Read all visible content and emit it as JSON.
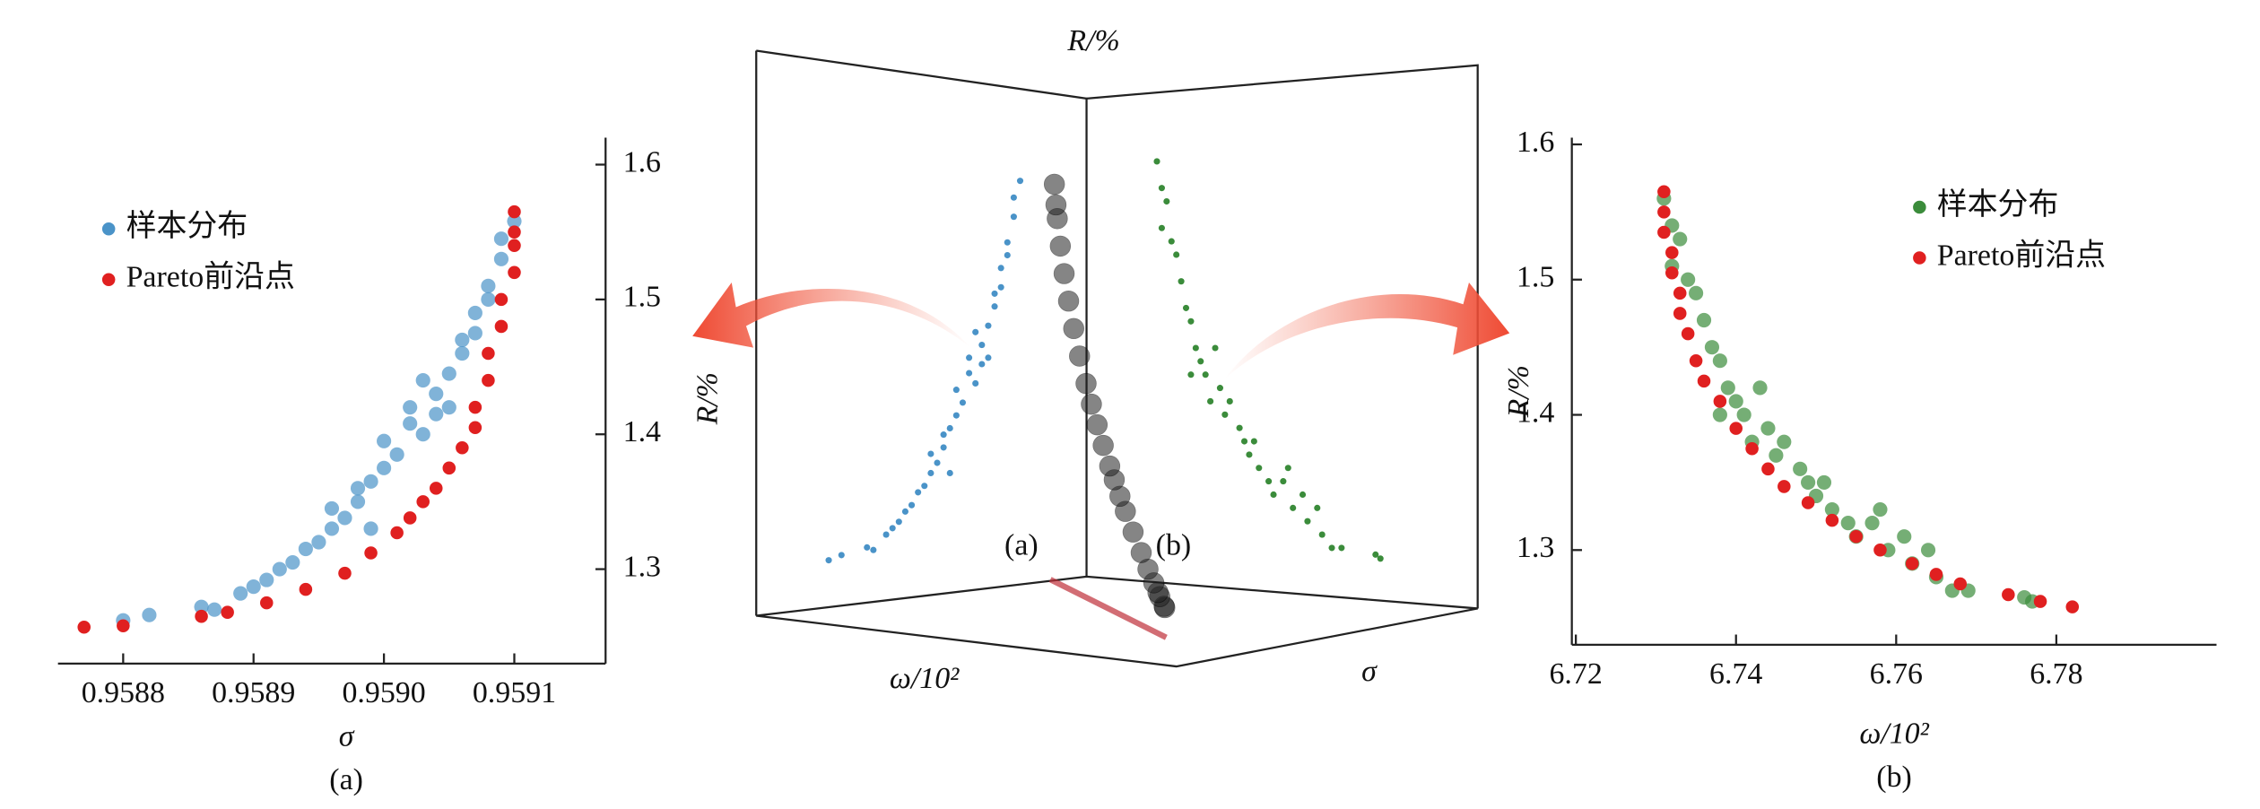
{
  "chart_data": [
    {
      "type": "scatter",
      "label": "(a)",
      "xlabel": "σ",
      "ylabel": "R/%",
      "xlim": [
        0.95875,
        0.95917
      ],
      "ylim": [
        1.23,
        1.62
      ],
      "xticks": [
        0.9588,
        0.9589,
        {
          "value": 0.959,
          "label": "0.9590"
        },
        0.9591
      ],
      "yticks": [
        1.3,
        1.4,
        1.5,
        1.6
      ],
      "series": [
        {
          "name": "样本分布",
          "color": "#4a93c8",
          "x": [
            0.9588,
            0.95882,
            0.95886,
            0.95887,
            0.95889,
            0.9589,
            0.95891,
            0.95892,
            0.95893,
            0.95894,
            0.95895,
            0.95896,
            0.95896,
            0.95897,
            0.95898,
            0.95899,
            0.959,
            0.959,
            0.95901,
            0.95902,
            0.95902,
            0.95903,
            0.95904,
            0.95904,
            0.95905,
            0.95906,
            0.95906,
            0.95907,
            0.95907,
            0.95908,
            0.95908,
            0.95909,
            0.95909,
            0.9591,
            0.95899,
            0.95898,
            0.95905,
            0.95903
          ],
          "y": [
            1.262,
            1.266,
            1.272,
            1.27,
            1.282,
            1.287,
            1.292,
            1.3,
            1.305,
            1.315,
            1.32,
            1.33,
            1.345,
            1.338,
            1.35,
            1.365,
            1.375,
            1.395,
            1.385,
            1.408,
            1.42,
            1.4,
            1.415,
            1.43,
            1.445,
            1.46,
            1.47,
            1.475,
            1.49,
            1.5,
            1.51,
            1.53,
            1.545,
            1.558,
            1.33,
            1.36,
            1.42,
            1.44
          ]
        },
        {
          "name": "Pareto前沿点",
          "color": "#e02020",
          "x": [
            0.95877,
            0.9588,
            0.95886,
            0.95888,
            0.95891,
            0.95894,
            0.95897,
            0.95899,
            0.95901,
            0.95902,
            0.95903,
            0.95904,
            0.95905,
            0.95906,
            0.95907,
            0.95907,
            0.95908,
            0.95908,
            0.95909,
            0.95909,
            0.9591,
            0.9591,
            0.9591,
            0.9591
          ],
          "y": [
            1.257,
            1.258,
            1.265,
            1.268,
            1.275,
            1.285,
            1.297,
            1.312,
            1.327,
            1.338,
            1.35,
            1.36,
            1.375,
            1.39,
            1.405,
            1.42,
            1.44,
            1.46,
            1.48,
            1.5,
            1.52,
            1.54,
            1.55,
            1.565
          ]
        }
      ]
    },
    {
      "type": "scatter",
      "label": "(b)",
      "xlabel": "ω/10²",
      "ylabel": "R/%",
      "xlim": [
        6.7195,
        6.8
      ],
      "ylim": [
        1.23,
        1.605
      ],
      "xticks": [
        6.72,
        6.74,
        6.76,
        6.78
      ],
      "yticks": [
        1.3,
        1.4,
        1.5,
        1.6
      ],
      "series": [
        {
          "name": "样本分布",
          "color": "#3b8c3b",
          "x": [
            6.731,
            6.732,
            6.732,
            6.733,
            6.734,
            6.735,
            6.736,
            6.737,
            6.738,
            6.739,
            6.74,
            6.741,
            6.743,
            6.744,
            6.745,
            6.746,
            6.748,
            6.749,
            6.75,
            6.752,
            6.754,
            6.755,
            6.757,
            6.758,
            6.759,
            6.761,
            6.762,
            6.764,
            6.765,
            6.767,
            6.769,
            6.776,
            6.777,
            6.742,
            6.738,
            6.751
          ],
          "y": [
            1.56,
            1.54,
            1.51,
            1.53,
            1.5,
            1.49,
            1.47,
            1.45,
            1.44,
            1.42,
            1.41,
            1.4,
            1.42,
            1.39,
            1.37,
            1.38,
            1.36,
            1.35,
            1.34,
            1.33,
            1.32,
            1.31,
            1.32,
            1.33,
            1.3,
            1.31,
            1.29,
            1.3,
            1.28,
            1.27,
            1.27,
            1.265,
            1.262,
            1.38,
            1.4,
            1.35
          ]
        },
        {
          "name": "Pareto前沿点",
          "color": "#e02020",
          "x": [
            6.731,
            6.731,
            6.731,
            6.732,
            6.732,
            6.733,
            6.733,
            6.734,
            6.735,
            6.736,
            6.738,
            6.74,
            6.742,
            6.744,
            6.746,
            6.749,
            6.752,
            6.755,
            6.758,
            6.762,
            6.765,
            6.768,
            6.774,
            6.778,
            6.782
          ],
          "y": [
            1.565,
            1.55,
            1.535,
            1.52,
            1.505,
            1.49,
            1.475,
            1.46,
            1.44,
            1.425,
            1.41,
            1.39,
            1.375,
            1.36,
            1.347,
            1.335,
            1.322,
            1.31,
            1.3,
            1.29,
            1.282,
            1.275,
            1.267,
            1.262,
            1.258
          ]
        }
      ]
    }
  ],
  "center_panel": {
    "z_label": "R/%",
    "x_label": "ω/10²",
    "y_label": "σ",
    "left_wall_label": "(a)",
    "right_wall_label": "(b)"
  }
}
